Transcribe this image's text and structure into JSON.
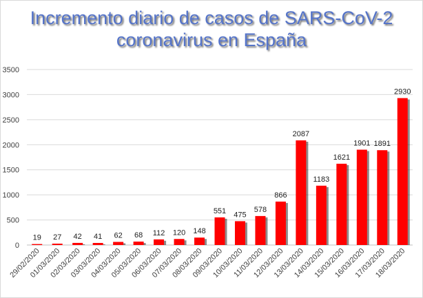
{
  "chart_data": {
    "type": "bar",
    "title": "Incremento diario de casos de SARS-CoV-2",
    "subtitle": "coronavirus en España",
    "xlabel": "",
    "ylabel": "",
    "ylim": [
      0,
      3500
    ],
    "yticks": [
      "0",
      "500",
      "1000",
      "1500",
      "2000",
      "2500",
      "3000",
      "3500"
    ],
    "grid": true,
    "legend": "none",
    "bar_color": "#ff0000",
    "categories": [
      "29/02/2020",
      "01/03/2020",
      "02/03/2020",
      "03/03/2020",
      "04/03/2020",
      "05/03/2020",
      "06/03/2020",
      "07/03/2020",
      "08/03/2020",
      "09/03/2020",
      "10/03/2020",
      "11/03/2020",
      "12/03/2020",
      "13/03/2020",
      "14/03/2020",
      "15/03/2020",
      "16/03/2020",
      "17/03/2020",
      "18/03/2020"
    ],
    "values": [
      19,
      27,
      42,
      41,
      62,
      68,
      112,
      120,
      148,
      551,
      475,
      578,
      866,
      2087,
      1183,
      1621,
      1901,
      1891,
      2930
    ]
  }
}
